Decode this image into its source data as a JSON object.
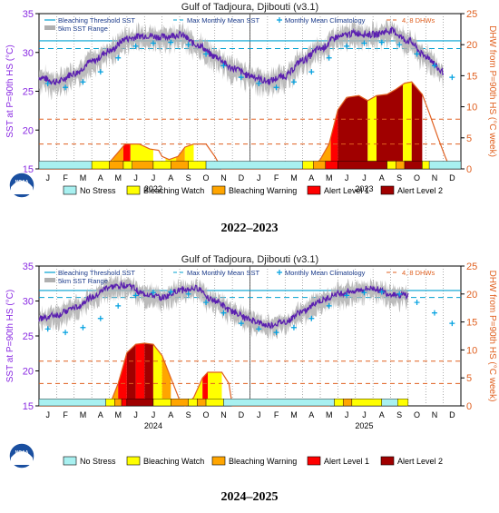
{
  "figure": {
    "caption_top": "2022–2023",
    "caption_bottom": "2024–2025"
  },
  "legend_labels": {
    "threshold": "Bleaching Threshold SST",
    "mmm": "Max Monthly Mean SST",
    "clim": "Monthly Mean Climatology",
    "dhw_ticks": "4, 8 DHWs",
    "range": "5km SST Range"
  },
  "stress_legend": [
    {
      "label": "No Stress",
      "color": "#a8f0f0"
    },
    {
      "label": "Bleaching Watch",
      "color": "#ffff00"
    },
    {
      "label": "Bleaching Warning",
      "color": "#ffa500"
    },
    {
      "label": "Alert Level 1",
      "color": "#ff0000"
    },
    {
      "label": "Alert Level 2",
      "color": "#a00000"
    }
  ],
  "colors": {
    "sst_line": "#5a1fb0",
    "threshold": "#00a0d0",
    "dhw": "#e06020",
    "range": "#b0b0b0",
    "axis_left": "#8a2be2",
    "axis_right": "#e06020",
    "clim_marker": "#00a0e0"
  },
  "chart_data": [
    {
      "type": "line",
      "title": "Gulf of Tadjoura, Djibouti (v3.1)",
      "ylabel": "SST at P=90th HS (°C)",
      "y2label": "DHW from P=90th HS (°C week)",
      "ylim": [
        15,
        35
      ],
      "y2lim": [
        0,
        25
      ],
      "yticks": [
        15,
        20,
        25,
        30,
        35
      ],
      "y2ticks": [
        0,
        5,
        10,
        15,
        20,
        25
      ],
      "months": [
        "J",
        "F",
        "M",
        "A",
        "M",
        "J",
        "J",
        "A",
        "S",
        "O",
        "N",
        "D",
        "J",
        "F",
        "M",
        "A",
        "M",
        "J",
        "J",
        "A",
        "S",
        "O",
        "N",
        "D"
      ],
      "year_labels": [
        {
          "label": "2022",
          "month": 6.5
        },
        {
          "label": "2023",
          "month": 18.5
        }
      ],
      "threshold": 31.5,
      "mmm": 30.5,
      "dhw_guides": [
        4,
        8
      ],
      "climatology": [
        {
          "m": 0.5,
          "v": 26.0
        },
        {
          "m": 1.5,
          "v": 25.5
        },
        {
          "m": 2.5,
          "v": 26.2
        },
        {
          "m": 3.5,
          "v": 27.5
        },
        {
          "m": 4.5,
          "v": 29.3
        },
        {
          "m": 5.5,
          "v": 30.8
        },
        {
          "m": 6.5,
          "v": 31.2
        },
        {
          "m": 7.5,
          "v": 31.3
        },
        {
          "m": 8.5,
          "v": 31.0
        },
        {
          "m": 9.5,
          "v": 29.8
        },
        {
          "m": 10.5,
          "v": 28.3
        },
        {
          "m": 11.5,
          "v": 26.8
        },
        {
          "m": 12.5,
          "v": 26.0
        },
        {
          "m": 13.5,
          "v": 25.5
        },
        {
          "m": 14.5,
          "v": 26.2
        },
        {
          "m": 15.5,
          "v": 27.5
        },
        {
          "m": 16.5,
          "v": 29.3
        },
        {
          "m": 17.5,
          "v": 30.8
        },
        {
          "m": 18.5,
          "v": 31.2
        },
        {
          "m": 19.5,
          "v": 31.3
        },
        {
          "m": 20.5,
          "v": 31.0
        },
        {
          "m": 21.5,
          "v": 29.8
        },
        {
          "m": 22.5,
          "v": 28.3
        },
        {
          "m": 23.5,
          "v": 26.8
        }
      ],
      "sst": [
        [
          0,
          26.8
        ],
        [
          1,
          26.2
        ],
        [
          2,
          27.3
        ],
        [
          3,
          28.8
        ],
        [
          4,
          30.2
        ],
        [
          5,
          31.8
        ],
        [
          6,
          32.2
        ],
        [
          7,
          32.0
        ],
        [
          8,
          32.3
        ],
        [
          9,
          31.0
        ],
        [
          10,
          29.5
        ],
        [
          11,
          28.0
        ],
        [
          12,
          27.0
        ],
        [
          13,
          26.3
        ],
        [
          14,
          27.0
        ],
        [
          15,
          29.0
        ],
        [
          16,
          30.5
        ],
        [
          17,
          32.0
        ],
        [
          18,
          32.5
        ],
        [
          19,
          32.3
        ],
        [
          20,
          32.8
        ],
        [
          21,
          31.5
        ],
        [
          22,
          29.5
        ],
        [
          23,
          27.5
        ]
      ],
      "dhw": [
        [
          0,
          0
        ],
        [
          3.5,
          0
        ],
        [
          4.0,
          1.0
        ],
        [
          4.6,
          3.0
        ],
        [
          4.9,
          4.0
        ],
        [
          5.7,
          4.0
        ],
        [
          6.3,
          3.2
        ],
        [
          6.8,
          3.0
        ],
        [
          7.0,
          2.0
        ],
        [
          7.4,
          1.5
        ],
        [
          7.9,
          2.0
        ],
        [
          8.3,
          3.5
        ],
        [
          8.8,
          4.0
        ],
        [
          9.5,
          4.0
        ],
        [
          10.0,
          2.0
        ],
        [
          10.4,
          0
        ],
        [
          15.5,
          0
        ],
        [
          16.0,
          1.5
        ],
        [
          16.5,
          4.0
        ],
        [
          17.0,
          9.5
        ],
        [
          17.5,
          11.5
        ],
        [
          18.2,
          11.8
        ],
        [
          18.7,
          11.0
        ],
        [
          19.2,
          11.8
        ],
        [
          19.8,
          12.0
        ],
        [
          20.3,
          12.8
        ],
        [
          20.8,
          13.8
        ],
        [
          21.2,
          14.0
        ],
        [
          21.8,
          12.0
        ],
        [
          22.2,
          9.0
        ],
        [
          22.7,
          5.0
        ],
        [
          23.1,
          2.0
        ],
        [
          23.4,
          0
        ]
      ],
      "stress_bar": [
        {
          "start": 0,
          "end": 3.0,
          "level": 0
        },
        {
          "start": 3.0,
          "end": 4.0,
          "level": 1
        },
        {
          "start": 4.0,
          "end": 4.8,
          "level": 2
        },
        {
          "start": 4.8,
          "end": 5.3,
          "level": 1
        },
        {
          "start": 5.3,
          "end": 6.5,
          "level": 2
        },
        {
          "start": 6.5,
          "end": 7.5,
          "level": 1
        },
        {
          "start": 7.5,
          "end": 8.5,
          "level": 2
        },
        {
          "start": 8.5,
          "end": 9.5,
          "level": 1
        },
        {
          "start": 9.5,
          "end": 15.0,
          "level": 0
        },
        {
          "start": 15.0,
          "end": 15.6,
          "level": 1
        },
        {
          "start": 15.6,
          "end": 16.3,
          "level": 2
        },
        {
          "start": 16.3,
          "end": 17.0,
          "level": 3
        },
        {
          "start": 17.0,
          "end": 19.8,
          "level": 4
        },
        {
          "start": 19.8,
          "end": 20.3,
          "level": 1
        },
        {
          "start": 20.3,
          "end": 20.8,
          "level": 2
        },
        {
          "start": 20.8,
          "end": 21.8,
          "level": 4
        },
        {
          "start": 21.8,
          "end": 22.2,
          "level": 1
        },
        {
          "start": 22.2,
          "end": 24,
          "level": 0
        }
      ],
      "dhw_fill": [
        {
          "start": 3.6,
          "end": 4.2,
          "level": 1
        },
        {
          "start": 4.2,
          "end": 4.8,
          "level": 2
        },
        {
          "start": 4.8,
          "end": 5.2,
          "level": 3
        },
        {
          "start": 5.2,
          "end": 6.5,
          "level": 1
        },
        {
          "start": 7.2,
          "end": 7.8,
          "level": 1
        },
        {
          "start": 7.8,
          "end": 8.3,
          "level": 2
        },
        {
          "start": 8.3,
          "end": 8.8,
          "level": 1
        },
        {
          "start": 15.6,
          "end": 16.0,
          "level": 1
        },
        {
          "start": 16.0,
          "end": 16.6,
          "level": 2
        },
        {
          "start": 16.6,
          "end": 17.0,
          "level": 3
        },
        {
          "start": 17.0,
          "end": 18.7,
          "level": 4
        },
        {
          "start": 18.7,
          "end": 19.2,
          "level": 1
        },
        {
          "start": 19.2,
          "end": 20.7,
          "level": 4
        },
        {
          "start": 20.7,
          "end": 21.2,
          "level": 1
        },
        {
          "start": 21.2,
          "end": 21.8,
          "level": 4
        }
      ]
    },
    {
      "type": "line",
      "title": "Gulf of Tadjoura, Djibouti (v3.1)",
      "ylabel": "SST at P=90th HS (°C)",
      "y2label": "DHW from P=90th HS (°C week)",
      "ylim": [
        15,
        35
      ],
      "y2lim": [
        0,
        25
      ],
      "yticks": [
        15,
        20,
        25,
        30,
        35
      ],
      "y2ticks": [
        0,
        5,
        10,
        15,
        20,
        25
      ],
      "months": [
        "J",
        "F",
        "M",
        "A",
        "M",
        "J",
        "J",
        "A",
        "S",
        "O",
        "N",
        "D",
        "J",
        "F",
        "M",
        "A",
        "M",
        "J",
        "J",
        "A",
        "S",
        "O",
        "N",
        "D"
      ],
      "year_labels": [
        {
          "label": "2024",
          "month": 6.5
        },
        {
          "label": "2025",
          "month": 18.5
        }
      ],
      "threshold": 31.5,
      "mmm": 30.5,
      "dhw_guides": [
        4,
        8
      ],
      "climatology": [
        {
          "m": 0.5,
          "v": 26.0
        },
        {
          "m": 1.5,
          "v": 25.5
        },
        {
          "m": 2.5,
          "v": 26.2
        },
        {
          "m": 3.5,
          "v": 27.5
        },
        {
          "m": 4.5,
          "v": 29.3
        },
        {
          "m": 5.5,
          "v": 30.8
        },
        {
          "m": 6.5,
          "v": 31.2
        },
        {
          "m": 7.5,
          "v": 31.3
        },
        {
          "m": 8.5,
          "v": 31.0
        },
        {
          "m": 9.5,
          "v": 29.8
        },
        {
          "m": 10.5,
          "v": 28.3
        },
        {
          "m": 11.5,
          "v": 26.8
        },
        {
          "m": 12.5,
          "v": 26.0
        },
        {
          "m": 13.5,
          "v": 25.5
        },
        {
          "m": 14.5,
          "v": 26.2
        },
        {
          "m": 15.5,
          "v": 27.5
        },
        {
          "m": 16.5,
          "v": 29.3
        },
        {
          "m": 17.5,
          "v": 30.8
        },
        {
          "m": 18.5,
          "v": 31.2
        },
        {
          "m": 19.5,
          "v": 31.3
        },
        {
          "m": 20.5,
          "v": 31.0
        },
        {
          "m": 21.5,
          "v": 29.8
        },
        {
          "m": 22.5,
          "v": 28.3
        },
        {
          "m": 23.5,
          "v": 26.8
        }
      ],
      "sst": [
        [
          0,
          27.5
        ],
        [
          1,
          28.0
        ],
        [
          2,
          29.0
        ],
        [
          3,
          30.5
        ],
        [
          4,
          32.0
        ],
        [
          5,
          32.3
        ],
        [
          6,
          31.0
        ],
        [
          7,
          30.5
        ],
        [
          8,
          31.5
        ],
        [
          9,
          31.8
        ],
        [
          10,
          30.0
        ],
        [
          11,
          28.5
        ],
        [
          12,
          27.3
        ],
        [
          13,
          26.5
        ],
        [
          14,
          27.0
        ],
        [
          15,
          28.5
        ],
        [
          16,
          30.0
        ],
        [
          17,
          31.0
        ],
        [
          18,
          31.5
        ],
        [
          19,
          31.8
        ],
        [
          20,
          31.0
        ],
        [
          21,
          30.8
        ]
      ],
      "dhw": [
        [
          0,
          0
        ],
        [
          4.0,
          0
        ],
        [
          4.5,
          4.0
        ],
        [
          5.0,
          9.5
        ],
        [
          5.5,
          11.0
        ],
        [
          6.0,
          11.2
        ],
        [
          6.5,
          11.0
        ],
        [
          7.0,
          9.0
        ],
        [
          7.5,
          5.0
        ],
        [
          8.0,
          1.0
        ],
        [
          8.3,
          0
        ],
        [
          8.8,
          1.5
        ],
        [
          9.3,
          5.0
        ],
        [
          9.6,
          6.0
        ],
        [
          10.4,
          6.0
        ],
        [
          10.8,
          4.0
        ],
        [
          11.0,
          0
        ],
        [
          16.5,
          0
        ],
        [
          17.0,
          0.8
        ],
        [
          17.5,
          1.2
        ],
        [
          19.0,
          1.2
        ],
        [
          19.5,
          0.8
        ],
        [
          20.5,
          0.6
        ],
        [
          21.0,
          0
        ]
      ],
      "stress_bar": [
        {
          "start": 0,
          "end": 3.8,
          "level": 0
        },
        {
          "start": 3.8,
          "end": 4.3,
          "level": 1
        },
        {
          "start": 4.3,
          "end": 4.7,
          "level": 2
        },
        {
          "start": 4.7,
          "end": 5.0,
          "level": 3
        },
        {
          "start": 5.0,
          "end": 6.5,
          "level": 4
        },
        {
          "start": 6.5,
          "end": 7.5,
          "level": 1
        },
        {
          "start": 7.5,
          "end": 8.5,
          "level": 2
        },
        {
          "start": 8.5,
          "end": 9.0,
          "level": 1
        },
        {
          "start": 9.0,
          "end": 9.5,
          "level": 2
        },
        {
          "start": 9.5,
          "end": 10.5,
          "level": 1
        },
        {
          "start": 10.5,
          "end": 16.8,
          "level": 0
        },
        {
          "start": 16.8,
          "end": 17.3,
          "level": 1
        },
        {
          "start": 17.3,
          "end": 17.8,
          "level": 2
        },
        {
          "start": 17.8,
          "end": 19.5,
          "level": 1
        },
        {
          "start": 19.5,
          "end": 20.4,
          "level": 0
        },
        {
          "start": 20.4,
          "end": 21.0,
          "level": 1
        }
      ],
      "dhw_fill": [
        {
          "start": 4.0,
          "end": 4.5,
          "level": 2
        },
        {
          "start": 4.5,
          "end": 5.0,
          "level": 3
        },
        {
          "start": 5.0,
          "end": 5.5,
          "level": 4
        },
        {
          "start": 5.5,
          "end": 6.0,
          "level": 3
        },
        {
          "start": 6.0,
          "end": 6.5,
          "level": 4
        },
        {
          "start": 6.5,
          "end": 7.0,
          "level": 1
        },
        {
          "start": 7.0,
          "end": 7.5,
          "level": 2
        },
        {
          "start": 8.3,
          "end": 8.8,
          "level": 2
        },
        {
          "start": 8.8,
          "end": 9.3,
          "level": 1
        },
        {
          "start": 9.3,
          "end": 9.6,
          "level": 3
        },
        {
          "start": 9.6,
          "end": 10.4,
          "level": 1
        },
        {
          "start": 17.0,
          "end": 17.5,
          "level": 2
        },
        {
          "start": 17.5,
          "end": 19.0,
          "level": 1
        }
      ]
    }
  ]
}
